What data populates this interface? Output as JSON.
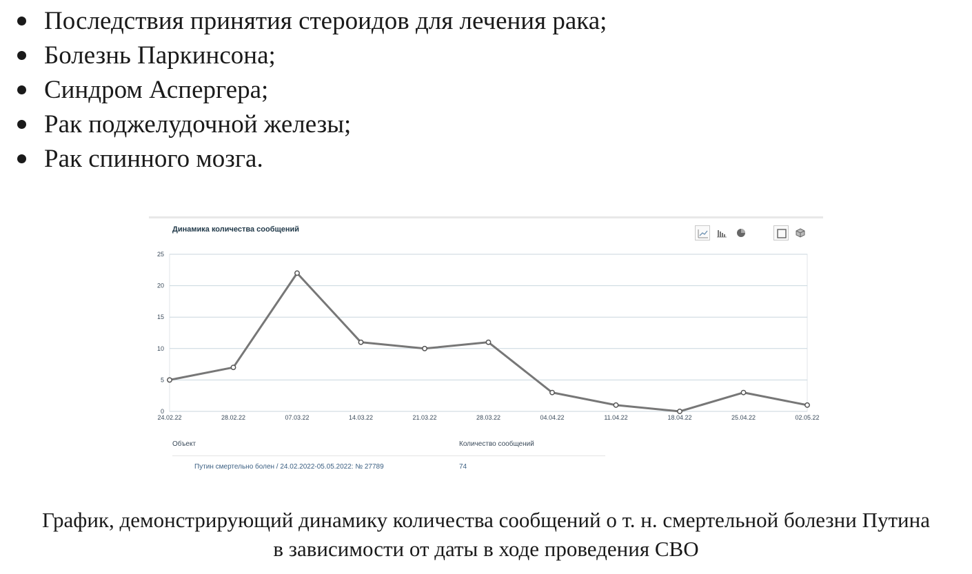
{
  "bullets": [
    "Последствия принятия стероидов для лечения рака;",
    "Болезнь Паркинсона;",
    "Синдром Аспергера;",
    "Рак поджелудочной железы;",
    "Рак спинного мозга."
  ],
  "chart": {
    "title": "Динамика количества сообщений",
    "toolbar": [
      "line-chart-icon",
      "bar-chart-icon",
      "pie-chart-icon",
      "flat-view-icon",
      "3d-view-icon"
    ]
  },
  "chart_data": {
    "type": "line",
    "title": "Динамика количества сообщений",
    "categories": [
      "24.02.22",
      "28.02.22",
      "07.03.22",
      "14.03.22",
      "21.03.22",
      "28.03.22",
      "04.04.22",
      "11.04.22",
      "18.04.22",
      "25.04.22",
      "02.05.22"
    ],
    "series": [
      {
        "values": [
          5,
          7,
          22,
          11,
          10,
          11,
          3,
          1,
          0,
          3,
          1
        ]
      }
    ],
    "yticks": [
      "0",
      "5",
      "10",
      "15",
      "20",
      "25"
    ],
    "ylim": [
      0,
      25
    ],
    "grid": true,
    "line_color": "#777777"
  },
  "table": {
    "headers": [
      "Объект",
      "Количество сообщений"
    ],
    "rows": [
      {
        "object": "Путин смертельно болен / 24.02.2022-05.05.2022: № 27789",
        "count": "74"
      }
    ]
  },
  "caption": {
    "line1": "График, демонстрирующий динамику количества сообщений о т. н. смертельной болезни Путина",
    "line2": "в зависимости от даты в ходе проведения СВО"
  }
}
